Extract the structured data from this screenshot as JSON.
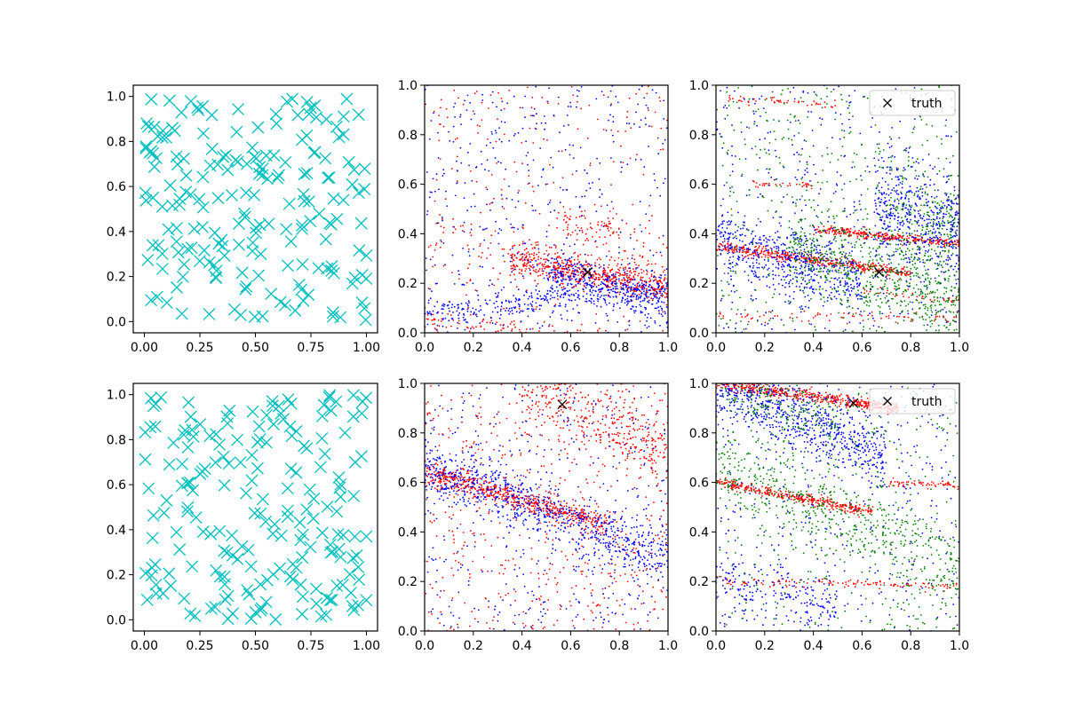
{
  "figure": {
    "rows": 2,
    "cols": 3
  },
  "colors": {
    "cyan": "#00bfbf",
    "red": "#ff0000",
    "blue": "#0000ff",
    "green": "#008000",
    "truth": "#000000",
    "axes": "#000000"
  },
  "chart_data": [
    {
      "panel": "row1-col1",
      "type": "scatter",
      "marker": "x",
      "color": "#00bfbf",
      "xlim": [
        -0.05,
        1.05
      ],
      "ylim": [
        -0.05,
        1.05
      ],
      "xticks": [
        "0.00",
        "0.25",
        "0.50",
        "0.75",
        "1.00"
      ],
      "yticks": [
        "0.0",
        "0.2",
        "0.4",
        "0.6",
        "0.8",
        "1.0"
      ],
      "n_points": 200,
      "distribution": "uniform on [0,1] x [0,1]",
      "grid": false
    },
    {
      "panel": "row1-col2",
      "type": "scatter",
      "marker": ".",
      "xlim": [
        0,
        1
      ],
      "ylim": [
        0,
        1
      ],
      "xticks": [
        "0.0",
        "0.2",
        "0.4",
        "0.6",
        "0.8",
        "1.0"
      ],
      "yticks": [
        "0.0",
        "0.2",
        "0.4",
        "0.6",
        "0.8",
        "1.0"
      ],
      "truth": {
        "x": 0.67,
        "y": 0.245,
        "marker": "x"
      },
      "series": [
        {
          "color": "#ff0000",
          "bands": [
            {
              "x": [
                0.35,
                1.0
              ],
              "y0": 0.3,
              "y1": 0.18,
              "spread": 0.03,
              "n": 600
            },
            {
              "x": [
                0.0,
                0.8
              ],
              "y0": 0.05,
              "y1": -0.03,
              "spread": 0.02,
              "n": 120
            },
            {
              "x": [
                0.0,
                1.0
              ],
              "y0": 0.38,
              "y1": 0.3,
              "spread": 0.05,
              "n": 80
            },
            {
              "x": [
                0.55,
                0.8
              ],
              "y0": 0.46,
              "y1": 0.42,
              "spread": 0.03,
              "n": 70
            }
          ],
          "scatter_n": 250
        },
        {
          "color": "#0000ff",
          "bands": [
            {
              "x": [
                0.0,
                1.0
              ],
              "y0": 0.07,
              "y1": 0.19,
              "spread": 0.03,
              "n": 300
            },
            {
              "x": [
                0.5,
                1.0
              ],
              "y0": 0.25,
              "y1": 0.12,
              "spread": 0.05,
              "n": 350
            }
          ],
          "scatter_n": 450
        }
      ]
    },
    {
      "panel": "row1-col3",
      "type": "scatter",
      "marker": ".",
      "xlim": [
        0,
        1
      ],
      "ylim": [
        0,
        1
      ],
      "xticks": [
        "0.0",
        "0.2",
        "0.4",
        "0.6",
        "0.8",
        "1.0"
      ],
      "yticks": [
        "0.0",
        "0.2",
        "0.4",
        "0.6",
        "0.8",
        "1.0"
      ],
      "truth": {
        "x": 0.67,
        "y": 0.245,
        "marker": "x"
      },
      "legend": {
        "label": "truth",
        "position": "top-right"
      },
      "series": [
        {
          "color": "#ff0000",
          "bands": [
            {
              "x": [
                0.0,
                0.8
              ],
              "y0": 0.35,
              "y1": 0.24,
              "spread": 0.012,
              "n": 450
            },
            {
              "x": [
                0.4,
                1.0
              ],
              "y0": 0.42,
              "y1": 0.36,
              "spread": 0.01,
              "n": 300
            },
            {
              "x": [
                0.0,
                1.0
              ],
              "y0": 0.07,
              "y1": 0.06,
              "spread": 0.01,
              "n": 80
            },
            {
              "x": [
                0.05,
                0.5
              ],
              "y0": 0.95,
              "y1": 0.92,
              "spread": 0.008,
              "n": 50
            },
            {
              "x": [
                0.15,
                0.4
              ],
              "y0": 0.6,
              "y1": 0.6,
              "spread": 0.008,
              "n": 35
            },
            {
              "x": [
                0.6,
                1.0
              ],
              "y0": 0.18,
              "y1": 0.13,
              "spread": 0.01,
              "n": 40
            }
          ],
          "scatter_n": 0
        },
        {
          "color": "#0000ff",
          "bands": [
            {
              "x": [
                0.0,
                0.6
              ],
              "y0": 0.38,
              "y1": 0.2,
              "spread": 0.07,
              "n": 500
            },
            {
              "x": [
                0.65,
                1.0
              ],
              "y0": 0.5,
              "y1": 0.42,
              "spread": 0.1,
              "n": 450
            }
          ],
          "scatter_n": 450
        },
        {
          "color": "#008000",
          "bands": [
            {
              "x": [
                0.3,
                1.0
              ],
              "y0": 0.35,
              "y1": 0.12,
              "spread": 0.08,
              "n": 550
            },
            {
              "x": [
                0.7,
                1.0
              ],
              "y0": 0.5,
              "y1": 0.4,
              "spread": 0.1,
              "n": 200
            }
          ],
          "scatter_n": 450
        }
      ]
    },
    {
      "panel": "row2-col1",
      "type": "scatter",
      "marker": "x",
      "color": "#00bfbf",
      "xlim": [
        -0.05,
        1.05
      ],
      "ylim": [
        -0.05,
        1.05
      ],
      "xticks": [
        "0.00",
        "0.25",
        "0.50",
        "0.75",
        "1.00"
      ],
      "yticks": [
        "0.0",
        "0.2",
        "0.4",
        "0.6",
        "0.8",
        "1.0"
      ],
      "n_points": 200,
      "distribution": "uniform on [0,1] x [0,1]",
      "grid": false
    },
    {
      "panel": "row2-col2",
      "type": "scatter",
      "marker": ".",
      "xlim": [
        0,
        1
      ],
      "ylim": [
        0,
        1
      ],
      "xticks": [
        "0.0",
        "0.2",
        "0.4",
        "0.6",
        "0.8",
        "1.0"
      ],
      "yticks": [
        "0.0",
        "0.2",
        "0.4",
        "0.6",
        "0.8",
        "1.0"
      ],
      "truth": {
        "x": 0.565,
        "y": 0.915,
        "marker": "x"
      },
      "series": [
        {
          "color": "#ff0000",
          "bands": [
            {
              "x": [
                0.0,
                0.75
              ],
              "y0": 0.64,
              "y1": 0.43,
              "spread": 0.025,
              "n": 600
            },
            {
              "x": [
                0.4,
                1.0
              ],
              "y0": 1.0,
              "y1": 0.72,
              "spread": 0.07,
              "n": 350
            }
          ],
          "scatter_n": 550
        },
        {
          "color": "#0000ff",
          "bands": [
            {
              "x": [
                0.0,
                1.0
              ],
              "y0": 0.66,
              "y1": 0.3,
              "spread": 0.06,
              "n": 750
            }
          ],
          "scatter_n": 400
        }
      ]
    },
    {
      "panel": "row2-col3",
      "type": "scatter",
      "marker": ".",
      "xlim": [
        0,
        1
      ],
      "ylim": [
        0,
        1
      ],
      "xticks": [
        "0.0",
        "0.2",
        "0.4",
        "0.6",
        "0.8",
        "1.0"
      ],
      "yticks": [
        "0.0",
        "0.2",
        "0.4",
        "0.6",
        "0.8",
        "1.0"
      ],
      "truth": {
        "x": 0.565,
        "y": 0.92,
        "marker": "x"
      },
      "legend": {
        "label": "truth",
        "position": "top-right"
      },
      "series": [
        {
          "color": "#ff0000",
          "bands": [
            {
              "x": [
                0.0,
                0.75
              ],
              "y0": 1.0,
              "y1": 0.9,
              "spread": 0.012,
              "n": 500
            },
            {
              "x": [
                0.0,
                0.65
              ],
              "y0": 0.6,
              "y1": 0.48,
              "spread": 0.01,
              "n": 350
            },
            {
              "x": [
                0.0,
                1.0
              ],
              "y0": 0.2,
              "y1": 0.18,
              "spread": 0.01,
              "n": 120
            },
            {
              "x": [
                0.7,
                1.0
              ],
              "y0": 0.6,
              "y1": 0.59,
              "spread": 0.008,
              "n": 60
            }
          ],
          "scatter_n": 0
        },
        {
          "color": "#0000ff",
          "bands": [
            {
              "x": [
                0.0,
                0.7
              ],
              "y0": 1.0,
              "y1": 0.7,
              "spread": 0.07,
              "n": 700
            },
            {
              "x": [
                0.0,
                0.5
              ],
              "y0": 0.18,
              "y1": 0.1,
              "spread": 0.07,
              "n": 200
            }
          ],
          "scatter_n": 350
        },
        {
          "color": "#008000",
          "bands": [
            {
              "x": [
                0.0,
                1.0
              ],
              "y0": 0.68,
              "y1": 0.25,
              "spread": 0.08,
              "n": 500
            },
            {
              "x": [
                0.0,
                0.5
              ],
              "y0": 1.0,
              "y1": 0.85,
              "spread": 0.06,
              "n": 200
            }
          ],
          "scatter_n": 350
        }
      ]
    }
  ]
}
